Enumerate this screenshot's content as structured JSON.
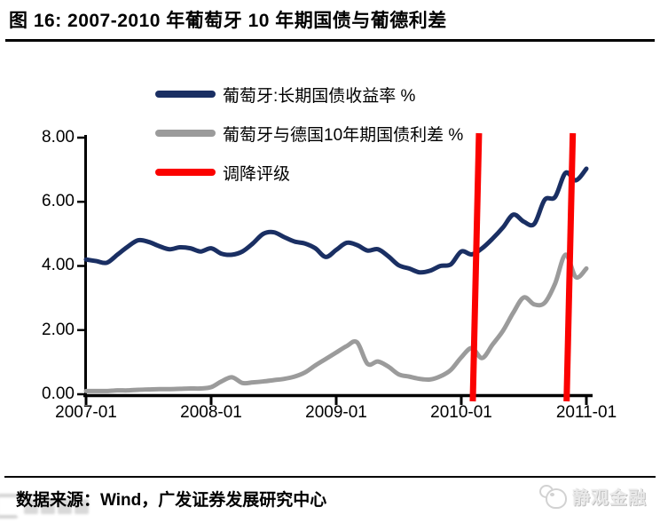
{
  "title": "图 16:  2007-2010 年葡萄牙 10 年期国债与葡德利差",
  "footer": {
    "source": "数据来源：Wind，广发证券发展研究中心",
    "brand": "静观金融"
  },
  "chart_data": {
    "type": "line",
    "title": "2007-2010 年葡萄牙 10 年期国债与葡德利差",
    "x_months": 49,
    "x_start": "2007-01",
    "x_end": "2011-01",
    "x_ticks": [
      "2007-01",
      "2008-01",
      "2009-01",
      "2010-01",
      "2011-01"
    ],
    "y_ticks": [
      "8.00",
      "6.00",
      "4.00",
      "2.00",
      "0.00"
    ],
    "ylim": [
      0,
      8
    ],
    "grid": false,
    "legend_position": "top-left-inside",
    "axis_color": "#000000",
    "legend": [
      {
        "label": "葡萄牙:长期国债收益率 %",
        "color": "#1A2F63"
      },
      {
        "label": "葡萄牙与德国10年期国债利差 %",
        "color": "#9B9B9B"
      },
      {
        "label": "调降评级",
        "color": "#FB0200"
      }
    ],
    "series": [
      {
        "name": "葡萄牙:长期国债收益率 %",
        "color": "#1A2F63",
        "values": [
          4.2,
          4.15,
          4.1,
          4.35,
          4.6,
          4.8,
          4.75,
          4.62,
          4.52,
          4.58,
          4.55,
          4.45,
          4.55,
          4.38,
          4.35,
          4.45,
          4.7,
          5.0,
          5.05,
          4.9,
          4.76,
          4.7,
          4.55,
          4.28,
          4.5,
          4.72,
          4.65,
          4.48,
          4.52,
          4.3,
          4.02,
          3.92,
          3.8,
          3.85,
          4.0,
          4.05,
          4.45,
          4.36,
          4.55,
          4.85,
          5.2,
          5.6,
          5.38,
          5.31,
          6.06,
          6.15,
          6.9,
          6.67,
          7.03
        ]
      },
      {
        "name": "葡萄牙与德国10年期国债利差 %",
        "color": "#9B9B9B",
        "values": [
          0.1,
          0.1,
          0.1,
          0.12,
          0.12,
          0.14,
          0.15,
          0.16,
          0.16,
          0.17,
          0.18,
          0.18,
          0.22,
          0.4,
          0.53,
          0.35,
          0.37,
          0.4,
          0.44,
          0.48,
          0.55,
          0.68,
          0.9,
          1.1,
          1.3,
          1.5,
          1.62,
          0.95,
          1.02,
          0.86,
          0.62,
          0.55,
          0.48,
          0.46,
          0.56,
          0.76,
          1.15,
          1.44,
          1.13,
          1.55,
          1.98,
          2.55,
          3.02,
          2.8,
          2.85,
          3.45,
          4.35,
          3.65,
          3.92
        ]
      }
    ],
    "event_lines": {
      "name": "调降评级",
      "color": "#FB0200",
      "x_month_index": [
        37.4,
        46.4
      ]
    }
  }
}
